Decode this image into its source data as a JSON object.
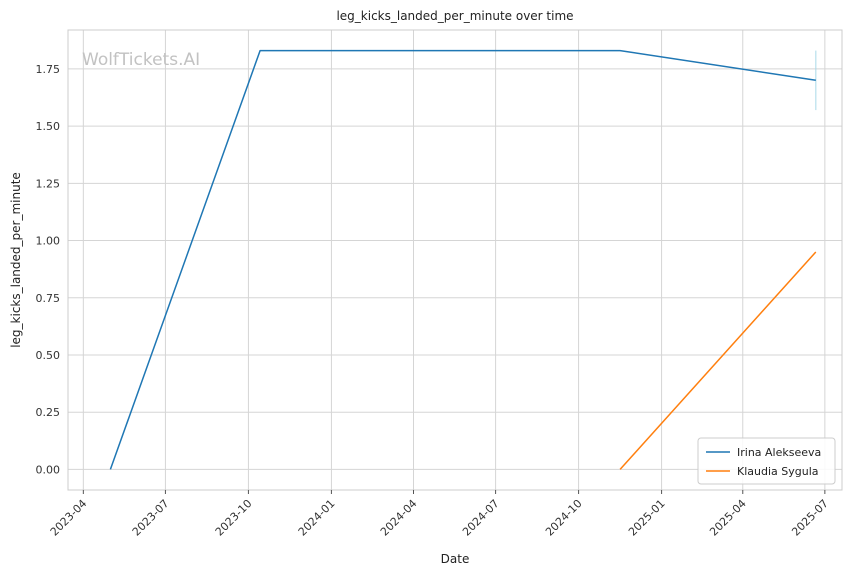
{
  "chart_data": {
    "type": "line",
    "title": "leg_kicks_landed_per_minute over time",
    "xlabel": "Date",
    "ylabel": "leg_kicks_landed_per_minute",
    "watermark": "WolfTickets.AI",
    "x_ticks": [
      "2023-04",
      "2023-07",
      "2023-10",
      "2024-01",
      "2024-04",
      "2024-07",
      "2024-10",
      "2025-01",
      "2025-04",
      "2025-07"
    ],
    "y_ticks": [
      "0.00",
      "0.25",
      "0.50",
      "0.75",
      "1.00",
      "1.25",
      "1.50",
      "1.75"
    ],
    "xlim": [
      "2023-03-15",
      "2025-07-20"
    ],
    "ylim": [
      -0.09,
      1.92
    ],
    "grid": true,
    "legend_position": "lower-right",
    "series": [
      {
        "name": "Irina Alekseeva",
        "color": "#1f77b4",
        "points": [
          {
            "x": "2023-05-01",
            "y": 0.0
          },
          {
            "x": "2023-10-14",
            "y": 1.83
          },
          {
            "x": "2024-11-16",
            "y": 1.83
          },
          {
            "x": "2025-06-21",
            "y": 1.7
          }
        ]
      },
      {
        "name": "Klaudia Sygula",
        "color": "#ff7f0e",
        "points": [
          {
            "x": "2024-11-16",
            "y": 0.0
          },
          {
            "x": "2025-06-21",
            "y": 0.95
          }
        ]
      }
    ],
    "annotations": [
      {
        "type": "error-bar",
        "x": "2025-06-21",
        "y_low": 1.57,
        "y_high": 1.83,
        "color": "#a8d8e8"
      }
    ]
  }
}
